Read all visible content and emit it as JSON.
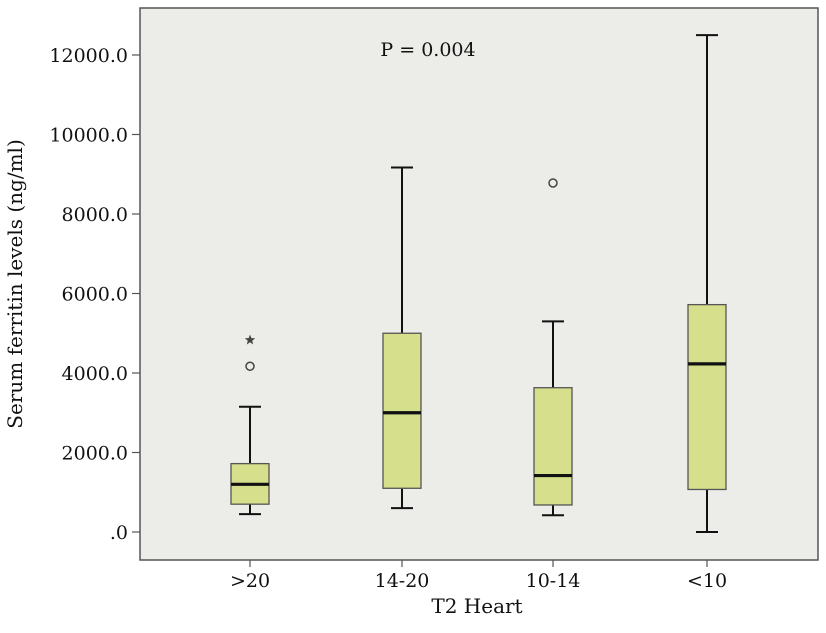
{
  "chart_data": {
    "type": "boxplot",
    "title": "",
    "xlabel": "T2 Heart",
    "ylabel": "Serum ferritin levels (ng/ml)",
    "annotation": "P = 0.004",
    "categories": [
      ">20",
      "14-20",
      "10-14",
      "<10"
    ],
    "ylim": [
      -700,
      13300
    ],
    "y_ticks": [
      0,
      2000,
      4000,
      6000,
      8000,
      10000,
      12000
    ],
    "y_tick_labels": [
      ".0",
      "2000.0",
      "4000.0",
      "6000.0",
      "8000.0",
      "10000.0",
      "12000.0"
    ],
    "boxes": [
      {
        "category": ">20",
        "whisker_low": 450,
        "q1": 700,
        "median": 1200,
        "q3": 1720,
        "whisker_high": 3150,
        "outliers": [
          {
            "value": 4170,
            "marker": "circle"
          },
          {
            "value": 4830,
            "marker": "star"
          }
        ]
      },
      {
        "category": "14-20",
        "whisker_low": 600,
        "q1": 1100,
        "median": 3000,
        "q3": 5000,
        "whisker_high": 9170,
        "outliers": []
      },
      {
        "category": "10-14",
        "whisker_low": 420,
        "q1": 680,
        "median": 1420,
        "q3": 3630,
        "whisker_high": 5300,
        "outliers": [
          {
            "value": 8780,
            "marker": "circle"
          }
        ]
      },
      {
        "category": "<10",
        "whisker_low": 0,
        "q1": 1070,
        "median": 4230,
        "q3": 5720,
        "whisker_high": 12500,
        "outliers": []
      }
    ],
    "colors": {
      "plot_bg": "#ecece8",
      "box_fill": "#d6df8c",
      "frame": "#555555",
      "line": "#111111"
    }
  }
}
